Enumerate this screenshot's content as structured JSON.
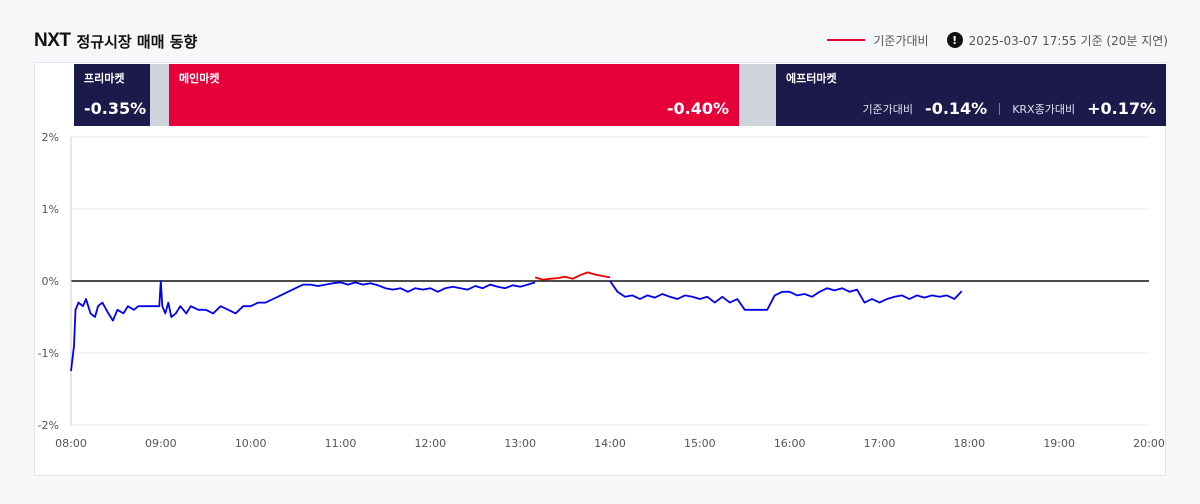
{
  "header": {
    "brand": "NXT",
    "title": "정규시장 매매 동향",
    "legend_label": "기준가대비",
    "timestamp": "2025-03-07 17:55 기준 (20분 지연)"
  },
  "sessions": {
    "pre": {
      "name": "프리마켓",
      "value": "-0.35%"
    },
    "main": {
      "name": "메인마켓",
      "value": "-0.40%"
    },
    "after": {
      "name": "에프터마켓",
      "base_label": "기준가대비",
      "base_value": "-0.14%",
      "krx_label": "KRX종가대비",
      "krx_value": "+0.17%"
    }
  },
  "colors": {
    "navy": "#1c1a4a",
    "red": "#e5003a",
    "gap": "#cfd3dc",
    "line_blue": "#0000ee",
    "line_red": "#ee0000"
  },
  "chart_data": {
    "type": "line",
    "ylim": [
      -2,
      2
    ],
    "y_ticks": [
      "2%",
      "1%",
      "0%",
      "-1%",
      "-2%"
    ],
    "y_tick_values": [
      2,
      1,
      0,
      -1,
      -2
    ],
    "x_ticks": [
      "08:00",
      "09:00",
      "10:00",
      "11:00",
      "12:00",
      "13:00",
      "14:00",
      "15:00",
      "16:00",
      "17:00",
      "18:00",
      "19:00",
      "20:00"
    ],
    "xlim_hours": [
      8,
      20
    ],
    "grid": true,
    "series": [
      {
        "values": [
          [
            "08:00",
            -1.25
          ],
          [
            "08:02",
            -0.9
          ],
          [
            "08:03",
            -0.4
          ],
          [
            "08:05",
            -0.3
          ],
          [
            "08:08",
            -0.35
          ],
          [
            "08:10",
            -0.25
          ],
          [
            "08:13",
            -0.45
          ],
          [
            "08:16",
            -0.5
          ],
          [
            "08:18",
            -0.35
          ],
          [
            "08:21",
            -0.3
          ],
          [
            "08:25",
            -0.45
          ],
          [
            "08:28",
            -0.55
          ],
          [
            "08:31",
            -0.4
          ],
          [
            "08:35",
            -0.45
          ],
          [
            "08:38",
            -0.35
          ],
          [
            "08:42",
            -0.4
          ],
          [
            "08:45",
            -0.35
          ],
          [
            "08:50",
            -0.35
          ],
          [
            "08:55",
            -0.35
          ],
          [
            "08:59",
            -0.35
          ],
          [
            "09:00",
            0.0
          ],
          [
            "09:01",
            -0.35
          ],
          [
            "09:03",
            -0.45
          ],
          [
            "09:05",
            -0.3
          ],
          [
            "09:07",
            -0.5
          ],
          [
            "09:10",
            -0.45
          ],
          [
            "09:13",
            -0.35
          ],
          [
            "09:17",
            -0.45
          ],
          [
            "09:20",
            -0.35
          ],
          [
            "09:25",
            -0.4
          ],
          [
            "09:30",
            -0.4
          ],
          [
            "09:35",
            -0.45
          ],
          [
            "09:40",
            -0.35
          ],
          [
            "09:45",
            -0.4
          ],
          [
            "09:50",
            -0.45
          ],
          [
            "09:55",
            -0.35
          ],
          [
            "10:00",
            -0.35
          ],
          [
            "10:05",
            -0.3
          ],
          [
            "10:10",
            -0.3
          ],
          [
            "10:15",
            -0.25
          ],
          [
            "10:20",
            -0.2
          ],
          [
            "10:25",
            -0.15
          ],
          [
            "10:30",
            -0.1
          ],
          [
            "10:35",
            -0.05
          ],
          [
            "10:40",
            -0.05
          ],
          [
            "10:45",
            -0.07
          ],
          [
            "10:50",
            -0.05
          ],
          [
            "10:55",
            -0.03
          ],
          [
            "11:00",
            -0.02
          ],
          [
            "11:05",
            -0.05
          ],
          [
            "11:10",
            -0.02
          ],
          [
            "11:15",
            -0.05
          ],
          [
            "11:20",
            -0.03
          ],
          [
            "11:25",
            -0.06
          ],
          [
            "11:30",
            -0.1
          ],
          [
            "11:35",
            -0.12
          ],
          [
            "11:40",
            -0.1
          ],
          [
            "11:45",
            -0.15
          ],
          [
            "11:50",
            -0.1
          ],
          [
            "11:55",
            -0.12
          ],
          [
            "12:00",
            -0.1
          ],
          [
            "12:05",
            -0.15
          ],
          [
            "12:10",
            -0.1
          ],
          [
            "12:15",
            -0.08
          ],
          [
            "12:20",
            -0.1
          ],
          [
            "12:25",
            -0.12
          ],
          [
            "12:30",
            -0.07
          ],
          [
            "12:35",
            -0.1
          ],
          [
            "12:40",
            -0.05
          ],
          [
            "12:45",
            -0.08
          ],
          [
            "12:50",
            -0.1
          ],
          [
            "12:55",
            -0.06
          ],
          [
            "13:00",
            -0.08
          ],
          [
            "13:05",
            -0.05
          ],
          [
            "13:10",
            -0.02
          ]
        ]
      },
      {
        "values": [
          [
            "13:10",
            0.05
          ],
          [
            "13:15",
            0.02
          ],
          [
            "13:20",
            0.03
          ],
          [
            "13:25",
            0.04
          ],
          [
            "13:30",
            0.06
          ],
          [
            "13:35",
            0.03
          ],
          [
            "13:40",
            0.08
          ],
          [
            "13:45",
            0.12
          ],
          [
            "13:50",
            0.09
          ],
          [
            "13:55",
            0.07
          ],
          [
            "14:00",
            0.05
          ]
        ]
      },
      {
        "values": [
          [
            "14:00",
            0.0
          ],
          [
            "14:05",
            -0.15
          ],
          [
            "14:10",
            -0.22
          ],
          [
            "14:15",
            -0.2
          ],
          [
            "14:20",
            -0.25
          ],
          [
            "14:25",
            -0.2
          ],
          [
            "14:30",
            -0.23
          ],
          [
            "14:35",
            -0.18
          ],
          [
            "14:40",
            -0.22
          ],
          [
            "14:45",
            -0.25
          ],
          [
            "14:50",
            -0.2
          ],
          [
            "14:55",
            -0.22
          ],
          [
            "15:00",
            -0.25
          ],
          [
            "15:05",
            -0.22
          ],
          [
            "15:10",
            -0.3
          ],
          [
            "15:15",
            -0.22
          ],
          [
            "15:20",
            -0.3
          ],
          [
            "15:25",
            -0.25
          ],
          [
            "15:30",
            -0.4
          ],
          [
            "15:45",
            -0.4
          ],
          [
            "15:50",
            -0.2
          ],
          [
            "15:55",
            -0.15
          ],
          [
            "16:00",
            -0.15
          ],
          [
            "16:05",
            -0.2
          ],
          [
            "16:10",
            -0.18
          ],
          [
            "16:15",
            -0.22
          ],
          [
            "16:20",
            -0.15
          ],
          [
            "16:25",
            -0.1
          ],
          [
            "16:30",
            -0.13
          ],
          [
            "16:35",
            -0.1
          ],
          [
            "16:40",
            -0.15
          ],
          [
            "16:45",
            -0.12
          ],
          [
            "16:50",
            -0.3
          ],
          [
            "16:55",
            -0.25
          ],
          [
            "17:00",
            -0.3
          ],
          [
            "17:05",
            -0.25
          ],
          [
            "17:10",
            -0.22
          ],
          [
            "17:15",
            -0.2
          ],
          [
            "17:20",
            -0.25
          ],
          [
            "17:25",
            -0.2
          ],
          [
            "17:30",
            -0.23
          ],
          [
            "17:35",
            -0.2
          ],
          [
            "17:40",
            -0.22
          ],
          [
            "17:45",
            -0.2
          ],
          [
            "17:50",
            -0.25
          ],
          [
            "17:55",
            -0.14
          ]
        ]
      }
    ]
  }
}
